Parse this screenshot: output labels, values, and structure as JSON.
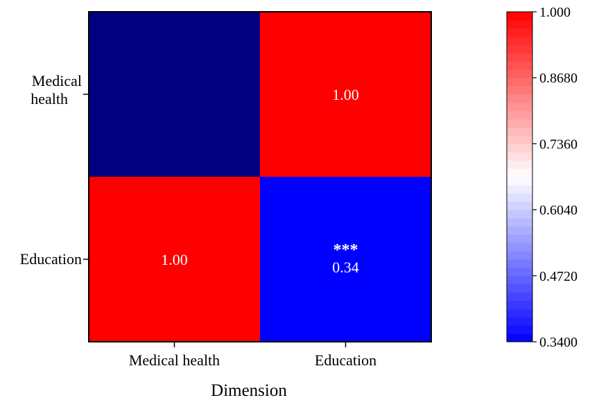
{
  "chart_data": {
    "type": "heatmap",
    "xlabel": "Dimension",
    "ylabel": "",
    "title": "",
    "x_categories": [
      "Medical health",
      "Education"
    ],
    "y_categories": [
      "Medical health",
      "Education"
    ],
    "cells": [
      {
        "row": "Medical health",
        "col": "Medical health",
        "value": null,
        "label": "",
        "significance": "",
        "color": "#000080"
      },
      {
        "row": "Medical health",
        "col": "Education",
        "value": 1.0,
        "label": "1.00",
        "significance": "",
        "color": "#ff0000"
      },
      {
        "row": "Education",
        "col": "Medical health",
        "value": 1.0,
        "label": "1.00",
        "significance": "",
        "color": "#ff0000"
      },
      {
        "row": "Education",
        "col": "Education",
        "value": 0.34,
        "label": "0.34",
        "significance": "***",
        "color": "#0000ff"
      }
    ],
    "colorbar": {
      "min": 0.34,
      "max": 1.0,
      "tick_labels": [
        "1.000",
        "0.8680",
        "0.7360",
        "0.6040",
        "0.4720",
        "0.3400"
      ],
      "tick_values": [
        1.0,
        0.868,
        0.736,
        0.604,
        0.472,
        0.34
      ],
      "low_color": "#0000ff",
      "mid_color": "#ffffff",
      "high_color": "#ff0000",
      "levels": 40
    },
    "grid": false,
    "legend": "right"
  }
}
